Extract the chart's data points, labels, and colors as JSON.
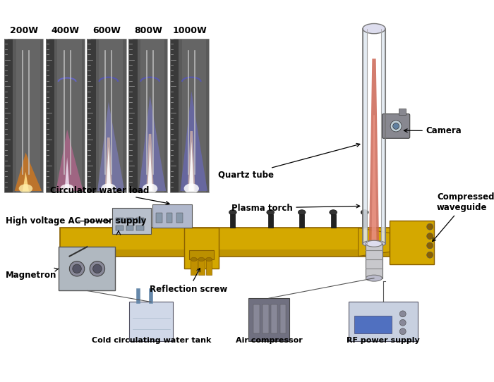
{
  "bg_color": "#ffffff",
  "fig_width": 7.0,
  "fig_height": 5.42,
  "photo_labels": [
    "200W",
    "400W",
    "600W",
    "800W",
    "1000W"
  ],
  "waveguide_color": "#d4a800",
  "waveguide_edge": "#8a6000",
  "panel_bg": "#2a2a2a",
  "panel_ruler_bg": "#404040",
  "panel_gray_bg": "#888888"
}
